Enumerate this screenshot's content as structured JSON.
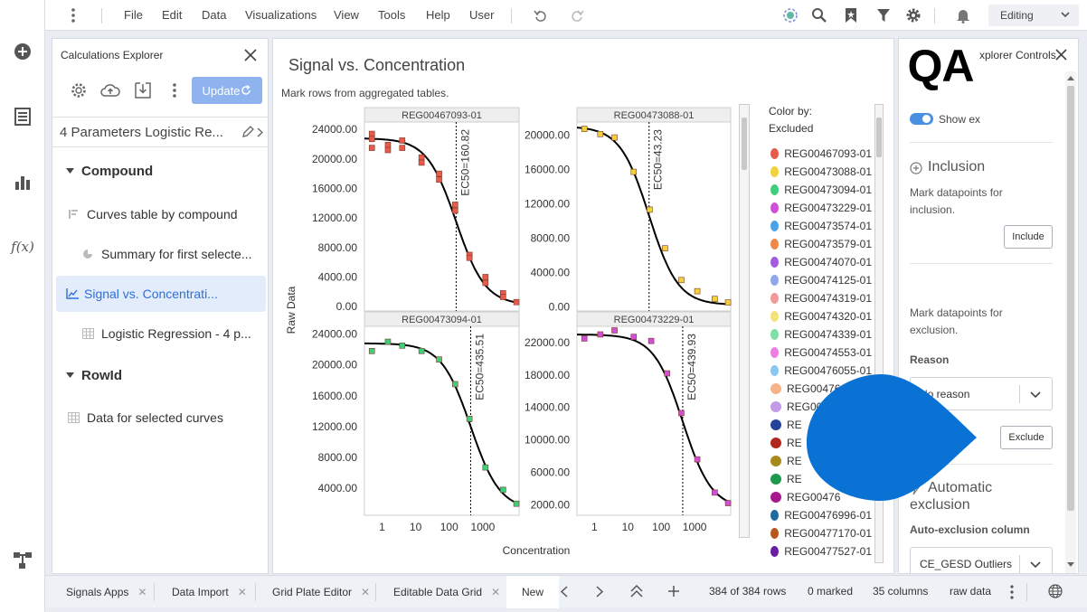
{
  "menubar": {
    "items": [
      "File",
      "Edit",
      "Data",
      "Visualizations",
      "View",
      "Tools",
      "Help",
      "User"
    ],
    "mode": "Editing"
  },
  "calc_explorer": {
    "title": "Calculations Explorer",
    "update_label": "Update",
    "calc_name": "4 Parameters Logistic Re...",
    "groups": [
      {
        "label": "Compound",
        "items": [
          {
            "label": "Curves table by compound"
          },
          {
            "label": "Summary for first selecte..."
          },
          {
            "label": "Signal vs. Concentrati..."
          },
          {
            "label": "Logistic Regression - 4 p..."
          }
        ]
      },
      {
        "label": "RowId",
        "items": [
          {
            "label": "Data for selected curves"
          }
        ]
      }
    ]
  },
  "viz": {
    "title": "Signal vs. Concentration",
    "subtitle": "Mark rows from aggregated tables.",
    "color_by_label": "Color by:",
    "color_by_value": "Excluded"
  },
  "chart_data": {
    "type": "scatter",
    "xlabel": "Concentration",
    "ylabel": "Raw Data",
    "x_scale": "log",
    "x_ticks": [
      "1",
      "10",
      "100",
      "1000"
    ],
    "panels": [
      {
        "title": "REG00467093-01",
        "ec50_label": "EC50=160.82",
        "ec50": 160.82,
        "color": "#e85b4a",
        "y_ticks": [
          "24000.00",
          "20000.00",
          "16000.00",
          "12000.00",
          "8000.00",
          "4000.00",
          "0.00"
        ],
        "ylim": [
          -600,
          25000
        ],
        "curve": {
          "top": 22800,
          "bottom": 200,
          "hill": 1.0
        },
        "points": [
          [
            0.5,
            23400
          ],
          [
            0.5,
            22700
          ],
          [
            0.5,
            21500
          ],
          [
            1.5,
            21900
          ],
          [
            1.5,
            21200
          ],
          [
            4,
            22500
          ],
          [
            4,
            21500
          ],
          [
            15,
            20200
          ],
          [
            15,
            19500
          ],
          [
            50,
            18000
          ],
          [
            50,
            17200
          ],
          [
            150,
            13800
          ],
          [
            150,
            13000
          ],
          [
            400,
            7000
          ],
          [
            400,
            6600
          ],
          [
            1200,
            4000
          ],
          [
            1200,
            3200
          ],
          [
            4000,
            1800
          ],
          [
            4000,
            1300
          ],
          [
            10000,
            600
          ]
        ]
      },
      {
        "title": "REG00473088-01",
        "ec50_label": "EC50=43.23",
        "ec50": 43.23,
        "color": "#f2d13a",
        "y_ticks": [
          "20000.00",
          "16000.00",
          "12000.00",
          "8000.00",
          "4000.00",
          "0.00"
        ],
        "ylim": [
          -500,
          21500
        ],
        "curve": {
          "top": 21000,
          "bottom": 200,
          "hill": 1.0
        },
        "points": [
          [
            0.5,
            20700
          ],
          [
            1.5,
            20100
          ],
          [
            4,
            19700
          ],
          [
            15,
            15700
          ],
          [
            45,
            11300
          ],
          [
            130,
            6800
          ],
          [
            400,
            3100
          ],
          [
            1200,
            1800
          ],
          [
            4000,
            900
          ],
          [
            10000,
            500
          ]
        ]
      },
      {
        "title": "REG00473094-01",
        "ec50_label": "EC50=435.51",
        "ec50": 435.51,
        "color": "#3fcf7c",
        "y_ticks": [
          "24000.00",
          "20000.00",
          "16000.00",
          "12000.00",
          "8000.00",
          "4000.00"
        ],
        "ylim": [
          500,
          25000
        ],
        "curve": {
          "top": 22800,
          "bottom": 1200,
          "hill": 1.0
        },
        "points": [
          [
            0.5,
            21800
          ],
          [
            1.5,
            23000
          ],
          [
            4,
            22500
          ],
          [
            15,
            21800
          ],
          [
            50,
            20700
          ],
          [
            150,
            17500
          ],
          [
            400,
            13000
          ],
          [
            1200,
            6700
          ],
          [
            4000,
            3800
          ],
          [
            10000,
            2000
          ]
        ]
      },
      {
        "title": "REG00473229-01",
        "ec50_label": "EC50=439.93",
        "ec50": 439.93,
        "color": "#d14fd6",
        "y_ticks": [
          "22000.00",
          "18000.00",
          "14000.00",
          "10000.00",
          "6000.00",
          "2000.00"
        ],
        "ylim": [
          700,
          24000
        ],
        "curve": {
          "top": 23000,
          "bottom": 1500,
          "hill": 1.0
        },
        "points": [
          [
            0.5,
            22500
          ],
          [
            1.5,
            23000
          ],
          [
            4,
            23500
          ],
          [
            15,
            22700
          ],
          [
            50,
            22200
          ],
          [
            150,
            18200
          ],
          [
            400,
            13300
          ],
          [
            1200,
            7600
          ],
          [
            4000,
            3500
          ],
          [
            10000,
            2200
          ]
        ]
      }
    ],
    "legend": [
      {
        "label": "REG00467093-01",
        "color": "#e85b4a"
      },
      {
        "label": "REG00473088-01",
        "color": "#f2d13a"
      },
      {
        "label": "REG00473094-01",
        "color": "#3fcf7c"
      },
      {
        "label": "REG00473229-01",
        "color": "#d14fd6"
      },
      {
        "label": "REG00473574-01",
        "color": "#4aa3e8"
      },
      {
        "label": "REG00473579-01",
        "color": "#f0874a"
      },
      {
        "label": "REG00474070-01",
        "color": "#a45be0"
      },
      {
        "label": "REG00474125-01",
        "color": "#8fa8e8"
      },
      {
        "label": "REG00474319-01",
        "color": "#f29a9a"
      },
      {
        "label": "REG00474320-01",
        "color": "#f3e27a"
      },
      {
        "label": "REG00474339-01",
        "color": "#7fe0a6"
      },
      {
        "label": "REG00474553-01",
        "color": "#ee7fe0"
      },
      {
        "label": "REG00476055-01",
        "color": "#8cc7f0"
      },
      {
        "label": "REG00476",
        "color": "#f6b38a"
      },
      {
        "label": "REG00",
        "color": "#c39ae8"
      },
      {
        "label": "RE",
        "color": "#26439a"
      },
      {
        "label": "RE",
        "color": "#b0281e"
      },
      {
        "label": "RE",
        "color": "#a88a1a"
      },
      {
        "label": "RE",
        "color": "#1e9a4e"
      },
      {
        "label": "REG00476",
        "color": "#a8198e"
      },
      {
        "label": "REG00476996-01",
        "color": "#1f6aa0"
      },
      {
        "label": "REG00477170-01",
        "color": "#b8561e"
      },
      {
        "label": "REG00477527-01",
        "color": "#6a1fa0"
      }
    ]
  },
  "controls": {
    "title": "xplorer Controls",
    "show_label": "Show ex",
    "inclusion_title": "Inclusion",
    "inclusion_desc": "Mark datapoints for inclusion.",
    "include_label": "Include",
    "exclusion_desc": "Mark datapoints for exclusion.",
    "reason_label": "Reason",
    "reason_value": "No reason",
    "exclude_label": "Exclude",
    "auto_title": "Automatic exclusion",
    "auto_col_label": "Auto-exclusion column",
    "auto_col_value": "CE_GESD Outliers"
  },
  "qa_badge": "QA",
  "bottom": {
    "tabs": [
      "Signals Apps",
      "Data Import",
      "Grid Plate Editor",
      "Editable Data Grid",
      "New"
    ],
    "rows": "384 of 384 rows",
    "marked": "0 marked",
    "columns": "35 columns",
    "table": "raw data"
  },
  "colors": {
    "accent": "#4a90e2",
    "selected_bg": "#e3ecfb",
    "drop_blue": "#0a72d4"
  }
}
